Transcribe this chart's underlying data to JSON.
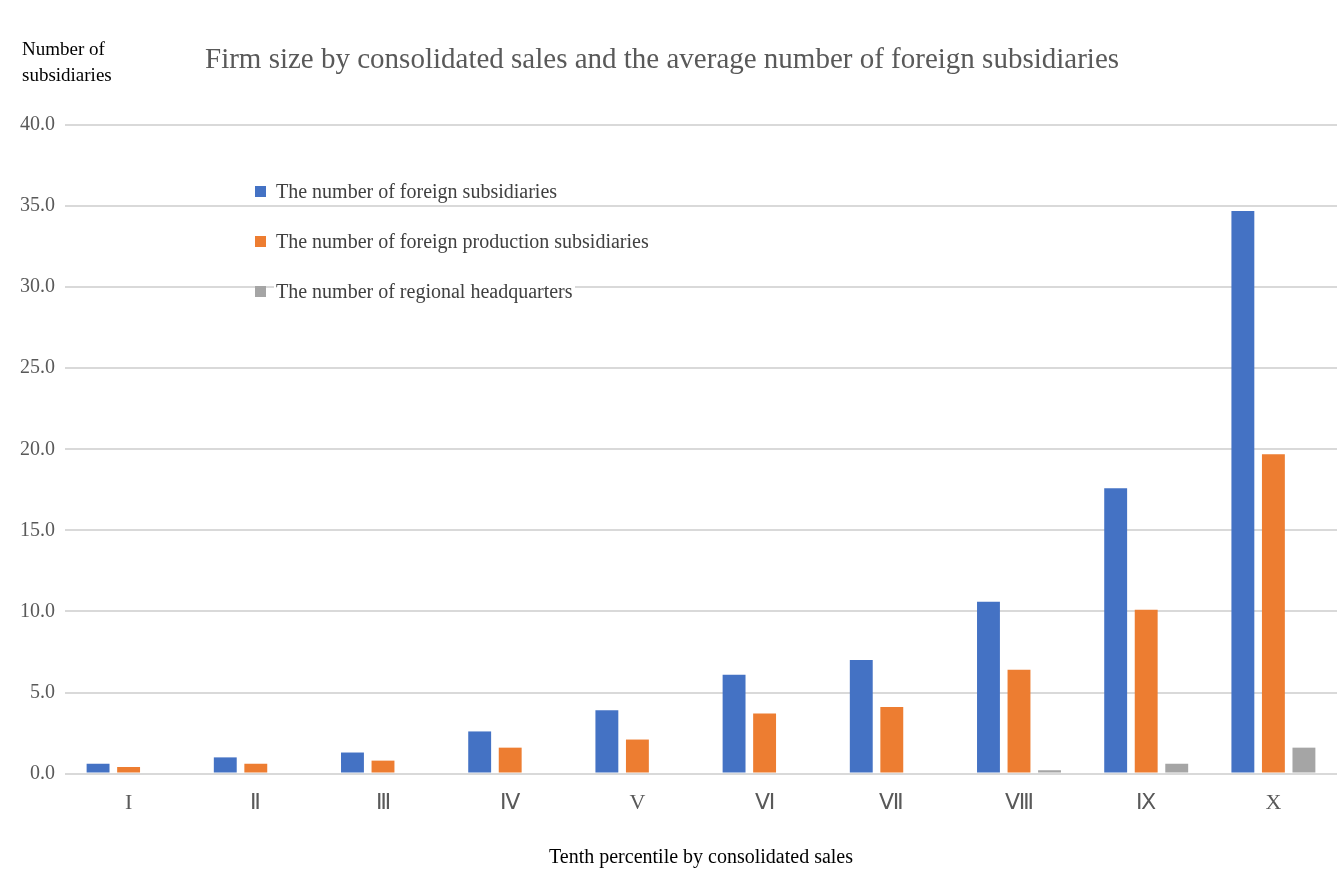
{
  "chart_data": {
    "type": "bar",
    "title": "Firm size by consolidated sales and the average number of foreign subsidiaries",
    "ylabel": "Number of subsidiaries",
    "xlabel": "Tenth percentile by consolidated sales",
    "categories": [
      "I",
      "Ⅱ",
      "Ⅲ",
      "Ⅳ",
      "V",
      "Ⅵ",
      "Ⅶ",
      "Ⅷ",
      "Ⅸ",
      "X"
    ],
    "series": [
      {
        "name": "The number of foreign subsidiaries",
        "color": "#4472c4",
        "values": [
          0.6,
          1.0,
          1.3,
          2.6,
          3.9,
          6.1,
          7.0,
          10.6,
          17.6,
          34.7
        ]
      },
      {
        "name": "The number of foreign production subsidiaries",
        "color": "#ed7d31",
        "values": [
          0.4,
          0.6,
          0.8,
          1.6,
          2.1,
          3.7,
          4.1,
          6.4,
          10.1,
          19.7
        ]
      },
      {
        "name": "The number of regional headquarters",
        "color": "#a5a5a5",
        "values": [
          0,
          0,
          0,
          0,
          0,
          0,
          0,
          0.2,
          0.6,
          1.6
        ]
      }
    ],
    "ylim": [
      0,
      40
    ],
    "yticks": [
      {
        "value": 0,
        "label": "0.0"
      },
      {
        "value": 5,
        "label": "5.0"
      },
      {
        "value": 10,
        "label": "10.0"
      },
      {
        "value": 15,
        "label": "15.0"
      },
      {
        "value": 20,
        "label": "20.0"
      },
      {
        "value": 25,
        "label": "25.0"
      },
      {
        "value": 30,
        "label": "30.0"
      },
      {
        "value": 35,
        "label": "35.0"
      },
      {
        "value": 40,
        "label": "40.0"
      }
    ],
    "grid": "y",
    "legend": "top left"
  }
}
